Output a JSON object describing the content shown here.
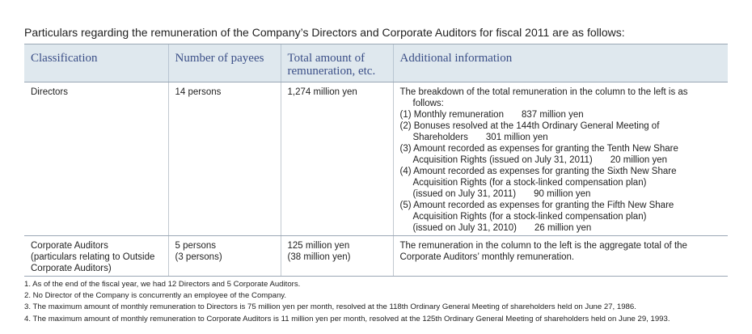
{
  "intro": "Particulars regarding the remuneration of the Company’s Directors and Corporate Auditors for fiscal 2011 are as follows:",
  "table": {
    "headers": {
      "classification": "Classification",
      "payees": "Number of payees",
      "total_line1": "Total amount of",
      "total_line2": "remuneration, etc.",
      "additional": "Additional information"
    },
    "directors": {
      "classification": "Directors",
      "payees": "14 persons",
      "total": "1,274 million yen",
      "info_intro_1": "The breakdown of the total remuneration in the column to the left is as",
      "info_intro_2": "follows:",
      "item1_label": "(1) Monthly remuneration",
      "item1_value": "837 million yen",
      "item2_line1": "(2) Bonuses resolved at the 144th Ordinary General Meeting of",
      "item2_line2": "Shareholders",
      "item2_value": "301 million yen",
      "item3_line1": "(3) Amount recorded as expenses for granting the Tenth New Share",
      "item3_line2": "Acquisition Rights (issued on July 31, 2011)",
      "item3_value": "20 million yen",
      "item4_line1": "(4) Amount recorded as expenses for granting the Sixth New Share",
      "item4_line2": "Acquisition Rights (for a stock-linked compensation plan)",
      "item4_line3": "(issued on July 31, 2011)",
      "item4_value": "90 million yen",
      "item5_line1": "(5) Amount recorded as expenses for granting the Fifth New Share",
      "item5_line2": "Acquisition Rights (for a stock-linked compensation plan)",
      "item5_line3": "(issued on July 31, 2010)",
      "item5_value": "26 million yen"
    },
    "auditors": {
      "class_line1": "Corporate Auditors",
      "class_line2": "(particulars relating to Outside",
      "class_line3": "Corporate Auditors)",
      "payees_line1": "5 persons",
      "payees_line2": "(3 persons)",
      "total_line1": "125 million yen",
      "total_line2": "(38 million yen)",
      "info_line1": "The remuneration in the column to the left is the aggregate total of the",
      "info_line2": "Corporate Auditors’ monthly remuneration."
    }
  },
  "notes": [
    "1. As of the end of the fiscal year, we had 12 Directors and 5 Corporate Auditors.",
    "2. No Director of the Company is concurrently an employee of the Company.",
    "3. The maximum amount of monthly remuneration to Directors is 75 million yen per month, resolved at the 118th Ordinary General Meeting of shareholders held on June 27, 1986.",
    "4. The maximum amount of monthly remuneration to Corporate Auditors is 11 million yen per month, resolved at the 125th Ordinary General Meeting of shareholders held on June 29, 1993."
  ]
}
